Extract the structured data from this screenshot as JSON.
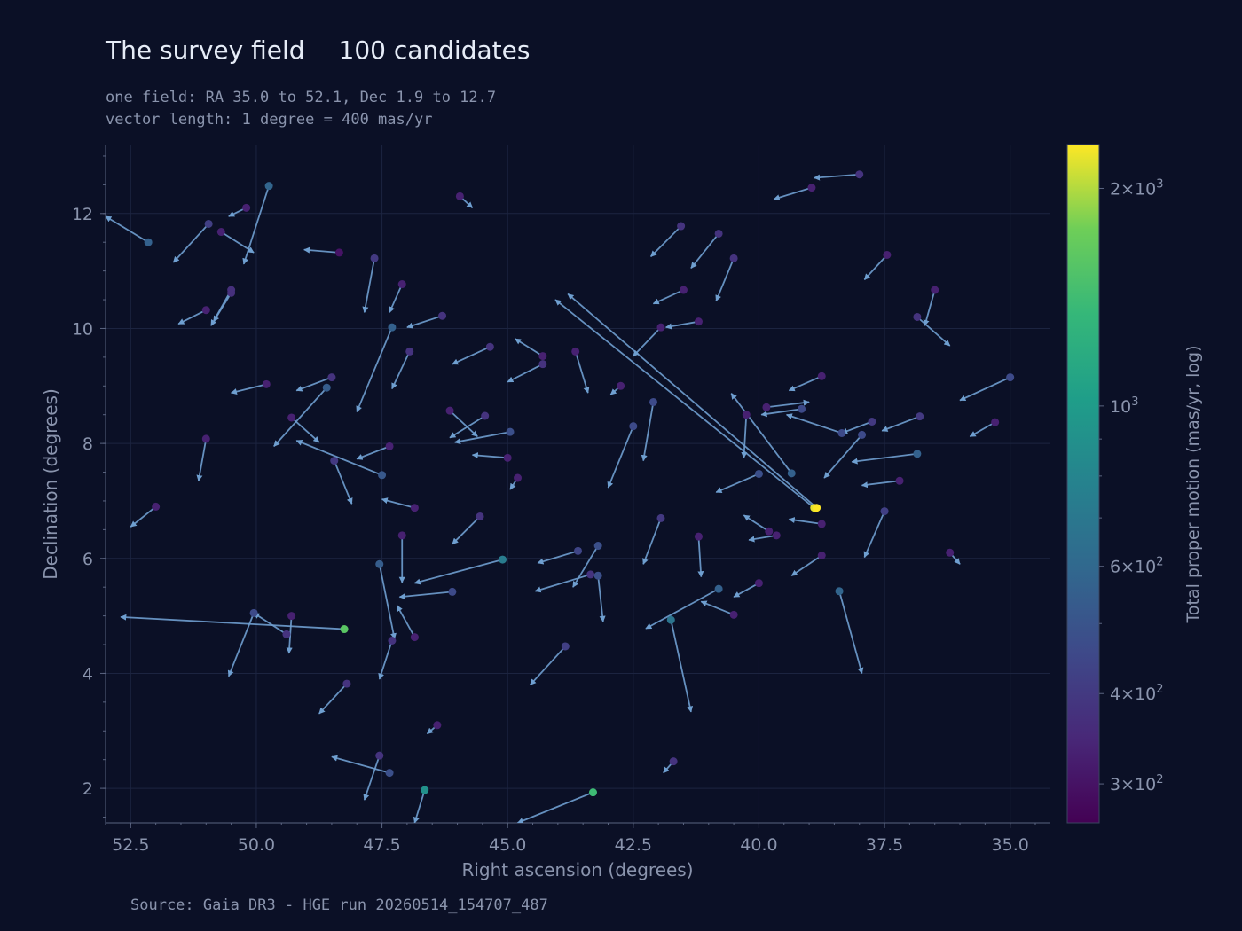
{
  "title": "The survey field",
  "count_label": "100 candidates",
  "subtitle_lines": [
    "one field: RA 35.0 to 52.1, Dec 1.9 to 12.7",
    "vector length: 1 degree = 400 mas/yr"
  ],
  "source": "Source: Gaia DR3 - HGE run 20260514_154707_487",
  "colors": {
    "background": "#0b1026",
    "grid": "#1c2440",
    "axis": "#5a6480",
    "tick_text": "#8a94ad",
    "vector": "#6f9fd0"
  },
  "chart_data": {
    "type": "scatter",
    "xlabel": "Right ascension  (degrees)",
    "ylabel": "Declination  (degrees)",
    "xlim": [
      53.0,
      34.2
    ],
    "ylim": [
      1.4,
      13.2
    ],
    "x_ticks": [
      52.5,
      50.0,
      47.5,
      45.0,
      42.5,
      40.0,
      37.5,
      35.0
    ],
    "x_tick_labels": [
      "52.5",
      "50.0",
      "47.5",
      "45.0",
      "42.5",
      "40.0",
      "37.5",
      "35.0"
    ],
    "y_ticks": [
      2,
      4,
      6,
      8,
      10,
      12
    ],
    "y_tick_labels": [
      "2",
      "4",
      "6",
      "8",
      "10",
      "12"
    ],
    "grid": true,
    "colorbar": {
      "label": "Total proper motion  (mas/yr, log)",
      "scale": "log",
      "range": [
        265,
        2300
      ],
      "ticks": [
        {
          "value": 2000,
          "mant": "2",
          "exp": "3"
        },
        {
          "value": 1000,
          "mant": "",
          "exp": "3"
        },
        {
          "value": 600,
          "mant": "6",
          "exp": "2"
        },
        {
          "value": 400,
          "mant": "4",
          "exp": "2"
        },
        {
          "value": 300,
          "mant": "3",
          "exp": "2"
        }
      ],
      "minor_ticks": [
        900,
        800,
        700,
        500
      ]
    },
    "points": [
      {
        "ra": 52.15,
        "dec": 11.5,
        "ra2": 53.0,
        "dec2": 11.95,
        "pm": 560
      },
      {
        "ra": 50.95,
        "dec": 11.82,
        "ra2": 51.65,
        "dec2": 11.15,
        "pm": 420
      },
      {
        "ra": 49.75,
        "dec": 12.48,
        "ra2": 50.25,
        "dec2": 11.12,
        "pm": 580
      },
      {
        "ra": 50.7,
        "dec": 11.68,
        "ra2": 50.05,
        "dec2": 11.32,
        "pm": 330
      },
      {
        "ra": 48.35,
        "dec": 11.32,
        "ra2": 49.05,
        "dec2": 11.37,
        "pm": 300
      },
      {
        "ra": 47.65,
        "dec": 11.22,
        "ra2": 47.85,
        "dec2": 10.28,
        "pm": 400
      },
      {
        "ra": 47.1,
        "dec": 10.77,
        "ra2": 47.35,
        "dec2": 10.28,
        "pm": 330
      },
      {
        "ra": 50.5,
        "dec": 10.67,
        "ra2": 50.9,
        "dec2": 10.05,
        "pm": 370
      },
      {
        "ra": 50.5,
        "dec": 10.62,
        "ra2": 50.85,
        "dec2": 10.12,
        "pm": 370
      },
      {
        "ra": 51.0,
        "dec": 10.32,
        "ra2": 51.55,
        "dec2": 10.08,
        "pm": 330
      },
      {
        "ra": 47.3,
        "dec": 10.02,
        "ra2": 48.0,
        "dec2": 8.55,
        "pm": 560
      },
      {
        "ra": 46.3,
        "dec": 10.22,
        "ra2": 47.0,
        "dec2": 10.02,
        "pm": 380
      },
      {
        "ra": 46.95,
        "dec": 9.6,
        "ra2": 47.3,
        "dec2": 8.95,
        "pm": 380
      },
      {
        "ra": 45.35,
        "dec": 9.68,
        "ra2": 46.1,
        "dec2": 9.38,
        "pm": 380
      },
      {
        "ra": 44.3,
        "dec": 9.52,
        "ra2": 44.85,
        "dec2": 9.82,
        "pm": 330
      },
      {
        "ra": 44.3,
        "dec": 9.38,
        "ra2": 45.0,
        "dec2": 9.07,
        "pm": 380
      },
      {
        "ra": 43.65,
        "dec": 9.6,
        "ra2": 43.4,
        "dec2": 8.88,
        "pm": 330
      },
      {
        "ra": 49.8,
        "dec": 9.03,
        "ra2": 50.5,
        "dec2": 8.88,
        "pm": 330
      },
      {
        "ra": 48.5,
        "dec": 9.15,
        "ra2": 49.2,
        "dec2": 8.92,
        "pm": 380
      },
      {
        "ra": 48.6,
        "dec": 8.97,
        "ra2": 49.65,
        "dec2": 7.95,
        "pm": 540
      },
      {
        "ra": 49.3,
        "dec": 8.45,
        "ra2": 48.75,
        "dec2": 8.02,
        "pm": 330
      },
      {
        "ra": 51.0,
        "dec": 8.08,
        "ra2": 51.15,
        "dec2": 7.35,
        "pm": 330
      },
      {
        "ra": 46.15,
        "dec": 8.57,
        "ra2": 45.6,
        "dec2": 8.12,
        "pm": 330
      },
      {
        "ra": 45.45,
        "dec": 8.48,
        "ra2": 46.15,
        "dec2": 8.1,
        "pm": 380
      },
      {
        "ra": 44.95,
        "dec": 8.2,
        "ra2": 46.05,
        "dec2": 8.02,
        "pm": 480
      },
      {
        "ra": 45.0,
        "dec": 7.75,
        "ra2": 45.7,
        "dec2": 7.8,
        "pm": 330
      },
      {
        "ra": 47.35,
        "dec": 7.95,
        "ra2": 48.0,
        "dec2": 7.73,
        "pm": 330
      },
      {
        "ra": 47.5,
        "dec": 7.45,
        "ra2": 49.2,
        "dec2": 8.05,
        "pm": 520
      },
      {
        "ra": 48.45,
        "dec": 7.7,
        "ra2": 48.1,
        "dec2": 6.95,
        "pm": 400
      },
      {
        "ra": 46.85,
        "dec": 6.88,
        "ra2": 47.5,
        "dec2": 7.03,
        "pm": 330
      },
      {
        "ra": 52.0,
        "dec": 6.9,
        "ra2": 52.5,
        "dec2": 6.55,
        "pm": 330
      },
      {
        "ra": 45.55,
        "dec": 6.73,
        "ra2": 46.1,
        "dec2": 6.25,
        "pm": 380
      },
      {
        "ra": 47.1,
        "dec": 6.4,
        "ra2": 47.1,
        "dec2": 5.58,
        "pm": 330
      },
      {
        "ra": 45.1,
        "dec": 5.98,
        "ra2": 46.85,
        "dec2": 5.57,
        "pm": 730
      },
      {
        "ra": 46.1,
        "dec": 5.42,
        "ra2": 47.15,
        "dec2": 5.33,
        "pm": 460
      },
      {
        "ra": 47.55,
        "dec": 5.9,
        "ra2": 47.25,
        "dec2": 4.6,
        "pm": 540
      },
      {
        "ra": 46.85,
        "dec": 4.63,
        "ra2": 47.2,
        "dec2": 5.18,
        "pm": 330
      },
      {
        "ra": 47.3,
        "dec": 4.57,
        "ra2": 47.55,
        "dec2": 3.9,
        "pm": 380
      },
      {
        "ra": 49.3,
        "dec": 5.0,
        "ra2": 49.35,
        "dec2": 4.35,
        "pm": 330
      },
      {
        "ra": 49.4,
        "dec": 4.68,
        "ra2": 50.05,
        "dec2": 5.05,
        "pm": 380
      },
      {
        "ra": 50.05,
        "dec": 5.05,
        "ra2": 50.55,
        "dec2": 3.95,
        "pm": 460
      },
      {
        "ra": 48.25,
        "dec": 4.77,
        "ra2": 52.7,
        "dec2": 4.98,
        "pm": 1600
      },
      {
        "ra": 48.2,
        "dec": 3.82,
        "ra2": 48.75,
        "dec2": 3.3,
        "pm": 380
      },
      {
        "ra": 47.55,
        "dec": 2.57,
        "ra2": 47.85,
        "dec2": 1.8,
        "pm": 380
      },
      {
        "ra": 47.35,
        "dec": 2.27,
        "ra2": 48.5,
        "dec2": 2.55,
        "pm": 480
      },
      {
        "ra": 46.65,
        "dec": 1.97,
        "ra2": 46.85,
        "dec2": 1.4,
        "pm": 900
      },
      {
        "ra": 43.3,
        "dec": 1.93,
        "ra2": 44.8,
        "dec2": 1.4,
        "pm": 1400
      },
      {
        "ra": 43.85,
        "dec": 4.47,
        "ra2": 44.55,
        "dec2": 3.8,
        "pm": 420
      },
      {
        "ra": 43.6,
        "dec": 6.13,
        "ra2": 44.4,
        "dec2": 5.92,
        "pm": 440
      },
      {
        "ra": 43.2,
        "dec": 6.22,
        "ra2": 43.7,
        "dec2": 5.5,
        "pm": 480
      },
      {
        "ra": 43.35,
        "dec": 5.72,
        "ra2": 44.45,
        "dec2": 5.43,
        "pm": 380
      },
      {
        "ra": 43.2,
        "dec": 5.7,
        "ra2": 43.1,
        "dec2": 4.9,
        "pm": 480
      },
      {
        "ra": 42.1,
        "dec": 8.72,
        "ra2": 42.3,
        "dec2": 7.7,
        "pm": 460
      },
      {
        "ra": 42.5,
        "dec": 8.3,
        "ra2": 43.0,
        "dec2": 7.23,
        "pm": 460
      },
      {
        "ra": 41.95,
        "dec": 6.7,
        "ra2": 42.3,
        "dec2": 5.9,
        "pm": 400
      },
      {
        "ra": 41.2,
        "dec": 6.38,
        "ra2": 41.15,
        "dec2": 5.68,
        "pm": 330
      },
      {
        "ra": 40.8,
        "dec": 5.47,
        "ra2": 42.25,
        "dec2": 4.78,
        "pm": 560
      },
      {
        "ra": 41.75,
        "dec": 4.93,
        "ra2": 41.35,
        "dec2": 3.33,
        "pm": 680
      },
      {
        "ra": 40.5,
        "dec": 5.02,
        "ra2": 41.15,
        "dec2": 5.25,
        "pm": 330
      },
      {
        "ra": 40.0,
        "dec": 5.57,
        "ra2": 40.5,
        "dec2": 5.33,
        "pm": 330
      },
      {
        "ra": 41.55,
        "dec": 11.78,
        "ra2": 42.15,
        "dec2": 11.25,
        "pm": 380
      },
      {
        "ra": 40.8,
        "dec": 11.65,
        "ra2": 41.35,
        "dec2": 11.05,
        "pm": 380
      },
      {
        "ra": 40.5,
        "dec": 11.22,
        "ra2": 40.85,
        "dec2": 10.48,
        "pm": 380
      },
      {
        "ra": 41.5,
        "dec": 10.67,
        "ra2": 42.1,
        "dec2": 10.43,
        "pm": 330
      },
      {
        "ra": 41.2,
        "dec": 10.12,
        "ra2": 41.85,
        "dec2": 10.02,
        "pm": 330
      },
      {
        "ra": 41.95,
        "dec": 10.02,
        "ra2": 42.5,
        "dec2": 9.52,
        "pm": 330
      },
      {
        "ra": 38.95,
        "dec": 12.45,
        "ra2": 39.7,
        "dec2": 12.25,
        "pm": 330
      },
      {
        "ra": 38.0,
        "dec": 12.68,
        "ra2": 38.9,
        "dec2": 12.62,
        "pm": 380
      },
      {
        "ra": 37.45,
        "dec": 11.28,
        "ra2": 37.9,
        "dec2": 10.85,
        "pm": 330
      },
      {
        "ra": 36.5,
        "dec": 10.67,
        "ra2": 36.7,
        "dec2": 10.05,
        "pm": 330
      },
      {
        "ra": 36.85,
        "dec": 10.2,
        "ra2": 36.2,
        "dec2": 9.7,
        "pm": 380
      },
      {
        "ra": 35.0,
        "dec": 9.15,
        "ra2": 36.0,
        "dec2": 8.75,
        "pm": 460
      },
      {
        "ra": 35.3,
        "dec": 8.37,
        "ra2": 35.8,
        "dec2": 8.12,
        "pm": 330
      },
      {
        "ra": 38.75,
        "dec": 9.17,
        "ra2": 39.4,
        "dec2": 8.92,
        "pm": 330
      },
      {
        "ra": 38.85,
        "dec": 6.88,
        "ra2": 43.8,
        "dec2": 10.6,
        "pm": 2300
      },
      {
        "ra": 38.9,
        "dec": 6.88,
        "ra2": 44.05,
        "dec2": 10.5,
        "pm": 2200
      },
      {
        "ra": 39.15,
        "dec": 8.6,
        "ra2": 39.95,
        "dec2": 8.5,
        "pm": 460
      },
      {
        "ra": 39.85,
        "dec": 8.63,
        "ra2": 39.0,
        "dec2": 8.72,
        "pm": 330
      },
      {
        "ra": 40.25,
        "dec": 8.5,
        "ra2": 40.3,
        "dec2": 7.75,
        "pm": 330
      },
      {
        "ra": 39.35,
        "dec": 7.48,
        "ra2": 40.55,
        "dec2": 8.87,
        "pm": 560
      },
      {
        "ra": 38.35,
        "dec": 8.18,
        "ra2": 39.45,
        "dec2": 8.5,
        "pm": 460
      },
      {
        "ra": 37.75,
        "dec": 8.38,
        "ra2": 38.35,
        "dec2": 8.18,
        "pm": 400
      },
      {
        "ra": 37.95,
        "dec": 8.15,
        "ra2": 38.7,
        "dec2": 7.4,
        "pm": 460
      },
      {
        "ra": 36.8,
        "dec": 8.47,
        "ra2": 37.55,
        "dec2": 8.22,
        "pm": 400
      },
      {
        "ra": 36.85,
        "dec": 7.82,
        "ra2": 38.15,
        "dec2": 7.68,
        "pm": 560
      },
      {
        "ra": 37.2,
        "dec": 7.35,
        "ra2": 37.95,
        "dec2": 7.27,
        "pm": 330
      },
      {
        "ra": 40.0,
        "dec": 7.47,
        "ra2": 40.85,
        "dec2": 7.15,
        "pm": 480
      },
      {
        "ra": 37.5,
        "dec": 6.82,
        "ra2": 37.9,
        "dec2": 6.02,
        "pm": 420
      },
      {
        "ra": 38.75,
        "dec": 6.6,
        "ra2": 39.4,
        "dec2": 6.68,
        "pm": 330
      },
      {
        "ra": 39.8,
        "dec": 6.47,
        "ra2": 40.3,
        "dec2": 6.75,
        "pm": 330
      },
      {
        "ra": 39.65,
        "dec": 6.4,
        "ra2": 40.2,
        "dec2": 6.32,
        "pm": 330
      },
      {
        "ra": 38.75,
        "dec": 6.05,
        "ra2": 39.35,
        "dec2": 5.7,
        "pm": 330
      },
      {
        "ra": 38.4,
        "dec": 5.43,
        "ra2": 37.95,
        "dec2": 4.0,
        "pm": 580
      },
      {
        "ra": 41.7,
        "dec": 2.47,
        "ra2": 41.9,
        "dec2": 2.27,
        "pm": 380
      },
      {
        "ra": 45.95,
        "dec": 12.3,
        "ra2": 45.7,
        "dec2": 12.1,
        "pm": 330
      },
      {
        "ra": 50.2,
        "dec": 12.1,
        "ra2": 50.55,
        "dec2": 11.95,
        "pm": 330
      },
      {
        "ra": 44.8,
        "dec": 7.4,
        "ra2": 44.95,
        "dec2": 7.2,
        "pm": 330
      },
      {
        "ra": 42.75,
        "dec": 9.0,
        "ra2": 42.95,
        "dec2": 8.85,
        "pm": 330
      },
      {
        "ra": 36.2,
        "dec": 6.1,
        "ra2": 36.0,
        "dec2": 5.9,
        "pm": 330
      },
      {
        "ra": 46.4,
        "dec": 3.1,
        "ra2": 46.6,
        "dec2": 2.95,
        "pm": 330
      }
    ]
  }
}
